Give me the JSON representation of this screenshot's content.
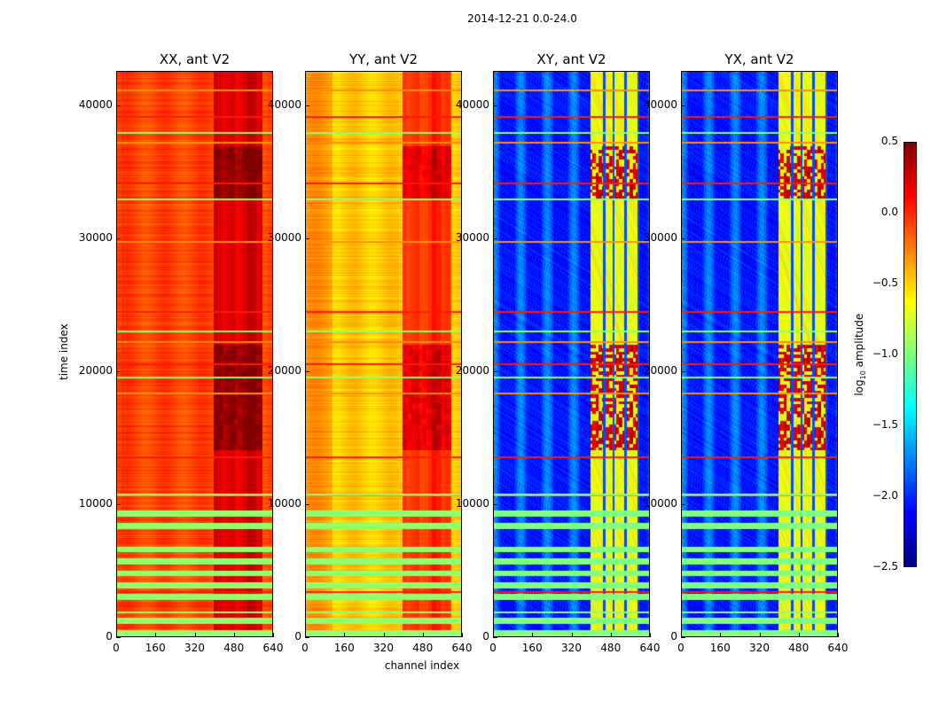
{
  "chart_data": {
    "type": "heatmap",
    "title": "2014-12-21 0.0-24.0",
    "xlabel": "channel index",
    "ylabel": "time index",
    "xlim": [
      0,
      640
    ],
    "ylim": [
      0,
      42600
    ],
    "xticks": [
      "0",
      "160",
      "320",
      "480",
      "640"
    ],
    "xtick_values": [
      0,
      160,
      320,
      480,
      640
    ],
    "yticks": [
      "0",
      "10000",
      "20000",
      "30000",
      "40000"
    ],
    "ytick_values": [
      0,
      10000,
      20000,
      30000,
      40000
    ],
    "panels": [
      {
        "title": "XX, ant V2",
        "baseline_log10_amplitude": -0.15,
        "active_channel_band": [
          400,
          600
        ],
        "active_band_level": 0.15
      },
      {
        "title": "YY, ant V2",
        "baseline_log10_amplitude": -0.55,
        "active_channel_band": [
          400,
          600
        ],
        "active_band_level": -0.1
      },
      {
        "title": "XY, ant V2",
        "baseline_log10_amplitude": -2.1,
        "active_channel_band": [
          400,
          600
        ],
        "active_band_level": -0.85
      },
      {
        "title": "YX, ant V2",
        "baseline_log10_amplitude": -2.1,
        "active_channel_band": [
          400,
          600
        ],
        "active_band_level": -0.85
      }
    ],
    "high_amplitude_time_ranges": [
      [
        14000,
        22000
      ],
      [
        33000,
        37000
      ]
    ],
    "flagged_time_rows": [
      1800,
      3300,
      10600,
      10700,
      13500,
      18300,
      19500,
      20500,
      22200,
      23000,
      24500,
      29800,
      33000,
      34200,
      37300,
      38000,
      39200,
      41200
    ],
    "colorbar": {
      "label": "log10 amplitude",
      "label_main": "log",
      "label_sub": "10",
      "label_rest": " amplitude",
      "colormap": "jet",
      "range": [
        -2.5,
        0.5
      ],
      "ticks": [
        "0.5",
        "0.0",
        "−0.5",
        "−1.0",
        "−1.5",
        "−2.0",
        "−2.5"
      ],
      "tick_values": [
        0.5,
        0.0,
        -0.5,
        -1.0,
        -1.5,
        -2.0,
        -2.5
      ]
    }
  }
}
